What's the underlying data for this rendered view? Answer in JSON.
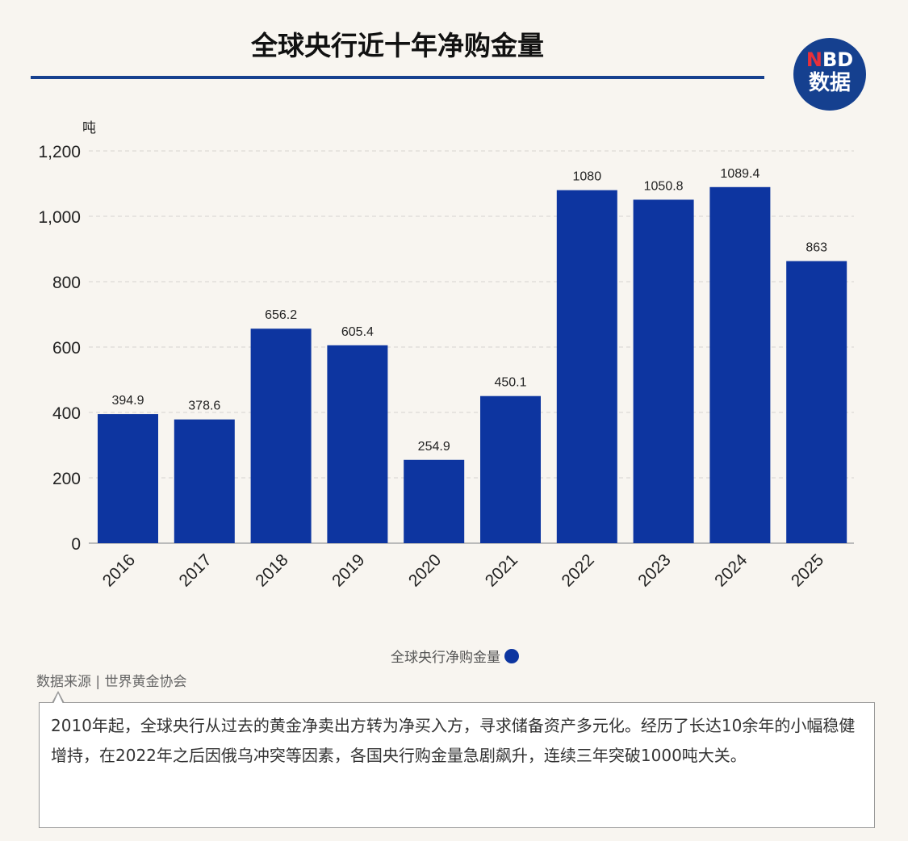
{
  "title": "全球央行近十年净购金量",
  "logo": {
    "top": "NBD",
    "bottom": "数据"
  },
  "chart_data": {
    "type": "bar",
    "title": "全球央行近十年净购金量",
    "ylabel": "吨",
    "categories": [
      "2016",
      "2017",
      "2018",
      "2019",
      "2020",
      "2021",
      "2022",
      "2023",
      "2024",
      "2025"
    ],
    "values": [
      394.9,
      378.6,
      656.2,
      605.4,
      254.9,
      450.1,
      1080,
      1050.8,
      1089.4,
      863
    ],
    "data_labels": [
      "394.9",
      "378.6",
      "656.2",
      "605.4",
      "254.9",
      "450.1",
      "1080",
      "1050.8",
      "1089.4",
      "863"
    ],
    "ylim": [
      0,
      1200
    ],
    "yticks": [
      "0",
      "200",
      "400",
      "600",
      "800",
      "1,000",
      "1,200"
    ],
    "grid": true,
    "legend": "bottom-center",
    "series": [
      {
        "name": "全球央行净购金量",
        "values": [
          394.9,
          378.6,
          656.2,
          605.4,
          254.9,
          450.1,
          1080,
          1050.8,
          1089.4,
          863
        ]
      }
    ],
    "bar_color": "#0d35a0"
  },
  "source": "数据来源 | 世界黄金协会",
  "note": "2010年起，全球央行从过去的黄金净卖出方转为净买入方，寻求储备资产多元化。经历了长达10余年的小幅稳健增持，在2022年之后因俄乌冲突等因素，各国央行购金量急剧飙升，连续三年突破1000吨大关。"
}
